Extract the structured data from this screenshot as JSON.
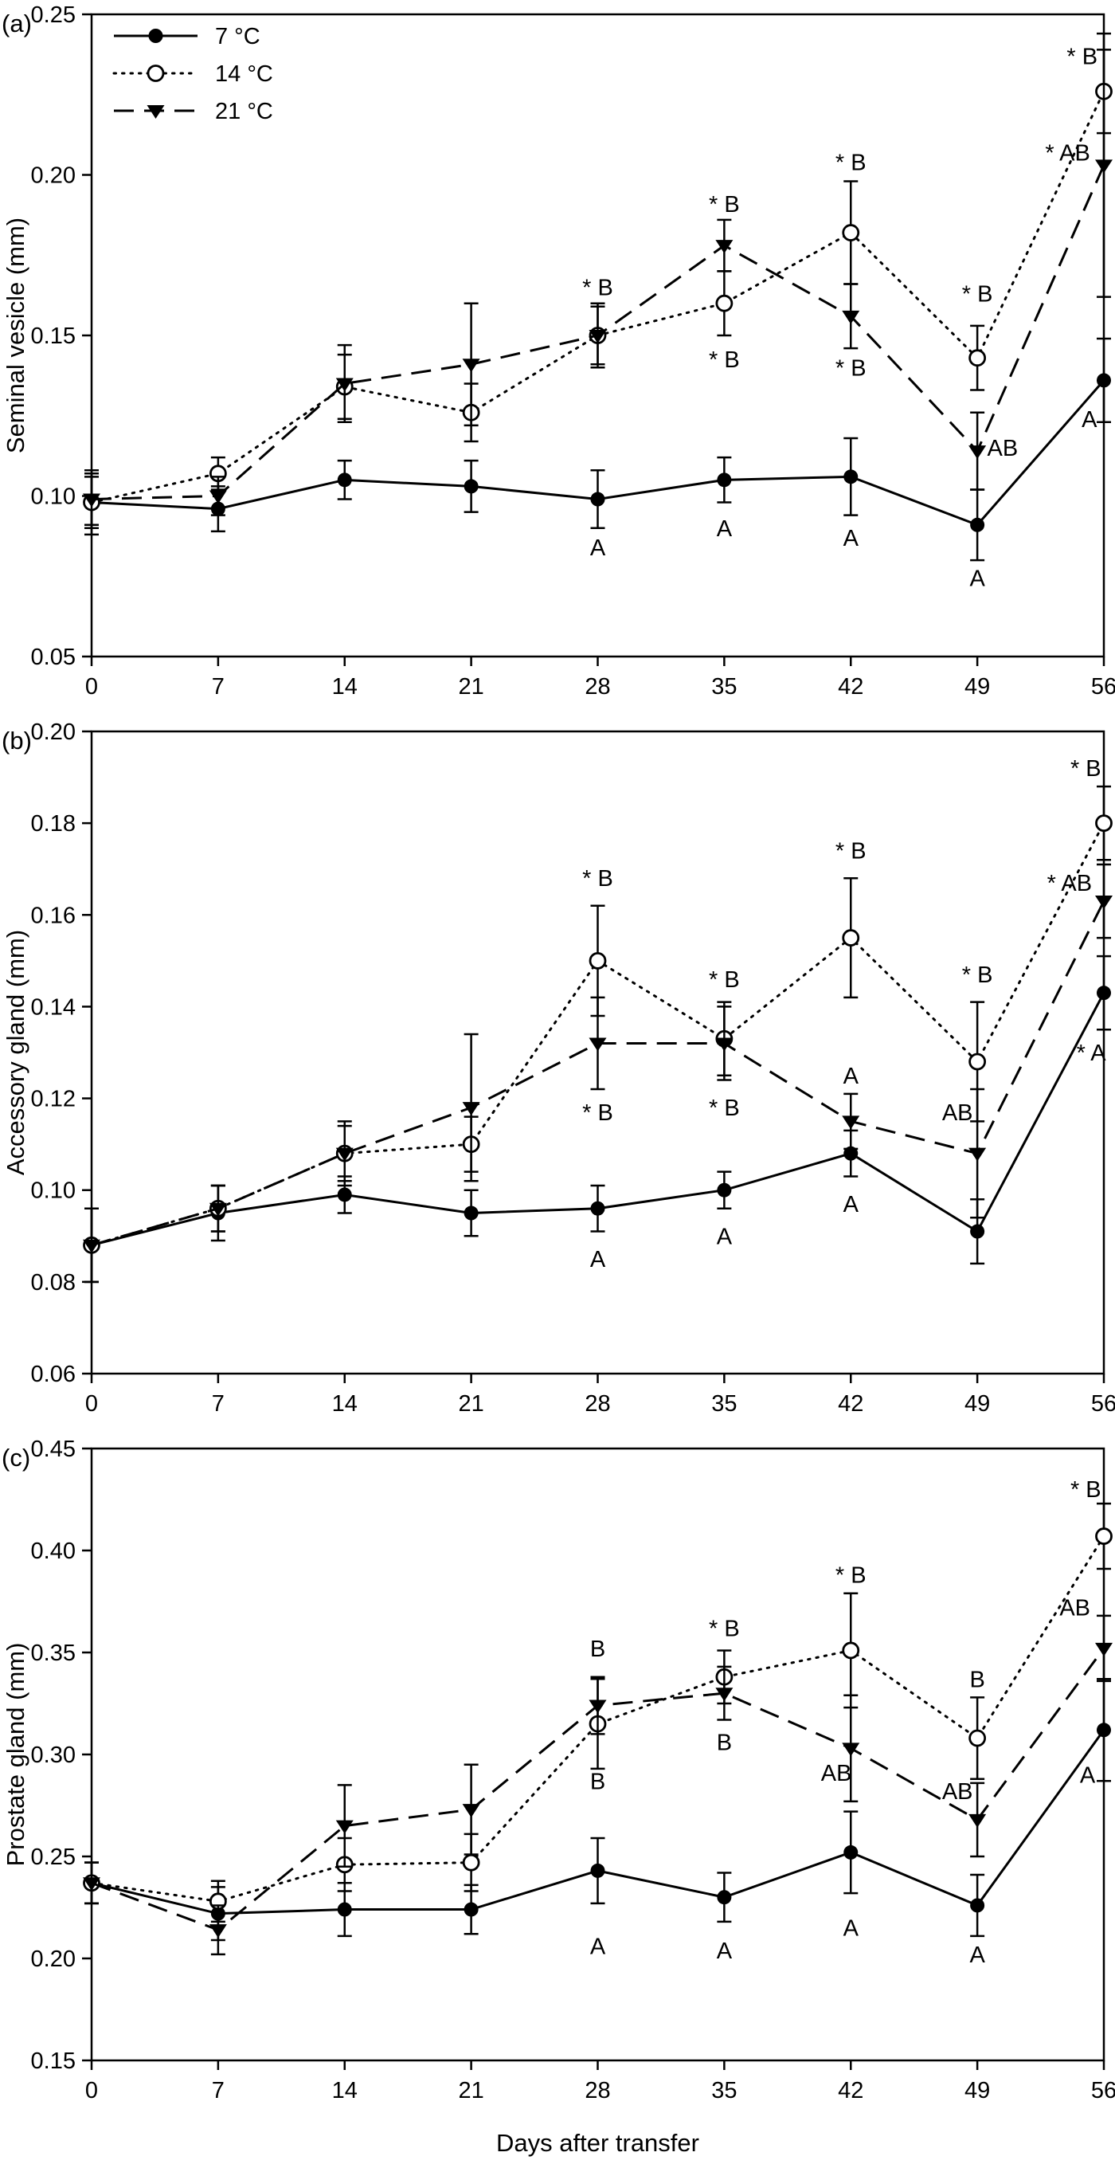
{
  "figure": {
    "xlabel": "Days after transfer",
    "x_ticks": [
      0,
      7,
      14,
      21,
      28,
      35,
      42,
      49,
      56
    ],
    "colors": {
      "foreground": "#000000",
      "background": "#ffffff"
    },
    "legend": {
      "position": "top-left-panel-a",
      "entries": [
        {
          "label": "7 °C",
          "marker": "filled-circle",
          "line": "solid"
        },
        {
          "label": "14 °C",
          "marker": "open-circle",
          "line": "dotted"
        },
        {
          "label": "21 °C",
          "marker": "filled-triangle-down",
          "line": "dashed"
        }
      ]
    }
  },
  "chart_data": [
    {
      "type": "line",
      "panel_label": "(a)",
      "ylabel": "Seminal vesicle (mm)",
      "x": [
        0,
        7,
        14,
        21,
        28,
        35,
        42,
        49,
        56
      ],
      "ylim": [
        0.05,
        0.25
      ],
      "yticks": [
        0.05,
        0.1,
        0.15,
        0.2,
        0.25
      ],
      "grid": false,
      "show_legend": true,
      "series": [
        {
          "name": "7 °C",
          "marker": "filled-circle",
          "line": "solid",
          "values": [
            0.098,
            0.096,
            0.105,
            0.103,
            0.099,
            0.105,
            0.106,
            0.091,
            0.136
          ],
          "errors": [
            0.01,
            0.007,
            0.006,
            0.008,
            0.009,
            0.007,
            0.012,
            0.011,
            0.013
          ]
        },
        {
          "name": "14 °C",
          "marker": "open-circle",
          "line": "dotted",
          "values": [
            0.098,
            0.107,
            0.134,
            0.126,
            0.15,
            0.16,
            0.182,
            0.143,
            0.226
          ],
          "errors": [
            0.008,
            0.005,
            0.01,
            0.009,
            0.01,
            0.01,
            0.016,
            0.01,
            0.013
          ]
        },
        {
          "name": "21 °C",
          "marker": "filled-triangle-down",
          "line": "dashed",
          "values": [
            0.099,
            0.1,
            0.135,
            0.141,
            0.15,
            0.178,
            0.156,
            0.114,
            0.203
          ],
          "errors": [
            0.008,
            0.006,
            0.012,
            0.019,
            0.009,
            0.008,
            0.01,
            0.012,
            0.041
          ]
        }
      ],
      "annotations": [
        {
          "x": 28,
          "y": 0.165,
          "text": "* B"
        },
        {
          "x": 35,
          "y": 0.191,
          "text": "* B"
        },
        {
          "x": 42,
          "y": 0.204,
          "text": "* B"
        },
        {
          "x": 49,
          "y": 0.163,
          "text": "* B"
        },
        {
          "x": 54.8,
          "y": 0.237,
          "text": "* B"
        },
        {
          "x": 54.0,
          "y": 0.207,
          "text": "* AB"
        },
        {
          "x": 35,
          "y": 0.1425,
          "text": "* B"
        },
        {
          "x": 42,
          "y": 0.14,
          "text": "* B"
        },
        {
          "x": 50.4,
          "y": 0.115,
          "text": "AB"
        },
        {
          "x": 28,
          "y": 0.084,
          "text": "A"
        },
        {
          "x": 35,
          "y": 0.09,
          "text": "A"
        },
        {
          "x": 42,
          "y": 0.087,
          "text": "A"
        },
        {
          "x": 49,
          "y": 0.0745,
          "text": "A"
        },
        {
          "x": 55.2,
          "y": 0.124,
          "text": "A"
        }
      ]
    },
    {
      "type": "line",
      "panel_label": "(b)",
      "ylabel": "Accessory gland (mm)",
      "x": [
        0,
        7,
        14,
        21,
        28,
        35,
        42,
        49,
        56
      ],
      "ylim": [
        0.06,
        0.2
      ],
      "yticks": [
        0.06,
        0.08,
        0.1,
        0.12,
        0.14,
        0.16,
        0.18,
        0.2
      ],
      "grid": false,
      "show_legend": false,
      "series": [
        {
          "name": "7 °C",
          "marker": "filled-circle",
          "line": "solid",
          "values": [
            0.088,
            0.095,
            0.099,
            0.095,
            0.096,
            0.1,
            0.108,
            0.091,
            0.143
          ],
          "errors": [
            0.008,
            0.006,
            0.004,
            0.005,
            0.005,
            0.004,
            0.005,
            0.007,
            0.008
          ]
        },
        {
          "name": "14 °C",
          "marker": "open-circle",
          "line": "dotted",
          "values": [
            0.088,
            0.096,
            0.108,
            0.11,
            0.15,
            0.133,
            0.155,
            0.128,
            0.18
          ],
          "errors": [
            0.008,
            0.005,
            0.006,
            0.006,
            0.012,
            0.008,
            0.013,
            0.013,
            0.008
          ]
        },
        {
          "name": "21 °C",
          "marker": "filled-triangle-down",
          "line": "dashed",
          "values": [
            0.088,
            0.096,
            0.108,
            0.118,
            0.132,
            0.132,
            0.115,
            0.108,
            0.163
          ],
          "errors": [
            0.008,
            0.005,
            0.007,
            0.016,
            0.01,
            0.008,
            0.006,
            0.014,
            0.008
          ]
        }
      ],
      "annotations": [
        {
          "x": 28,
          "y": 0.168,
          "text": "* B"
        },
        {
          "x": 35,
          "y": 0.146,
          "text": "* B"
        },
        {
          "x": 42,
          "y": 0.174,
          "text": "* B"
        },
        {
          "x": 49,
          "y": 0.147,
          "text": "* B"
        },
        {
          "x": 55.0,
          "y": 0.192,
          "text": "* B"
        },
        {
          "x": 54.1,
          "y": 0.167,
          "text": "* AB"
        },
        {
          "x": 55.3,
          "y": 0.13,
          "text": "* A"
        },
        {
          "x": 28,
          "y": 0.117,
          "text": "* B"
        },
        {
          "x": 35,
          "y": 0.118,
          "text": "* B"
        },
        {
          "x": 42,
          "y": 0.125,
          "text": "A"
        },
        {
          "x": 47.9,
          "y": 0.117,
          "text": "AB"
        },
        {
          "x": 28,
          "y": 0.085,
          "text": "A"
        },
        {
          "x": 35,
          "y": 0.09,
          "text": "A"
        },
        {
          "x": 42,
          "y": 0.097,
          "text": "A"
        }
      ]
    },
    {
      "type": "line",
      "panel_label": "(c)",
      "ylabel": "Prostate gland (mm)",
      "x": [
        0,
        7,
        14,
        21,
        28,
        35,
        42,
        49,
        56
      ],
      "ylim": [
        0.15,
        0.45
      ],
      "yticks": [
        0.15,
        0.2,
        0.25,
        0.3,
        0.35,
        0.4,
        0.45
      ],
      "grid": false,
      "show_legend": false,
      "series": [
        {
          "name": "7 °C",
          "marker": "filled-circle",
          "line": "solid",
          "values": [
            0.237,
            0.222,
            0.224,
            0.224,
            0.243,
            0.23,
            0.252,
            0.226,
            0.312
          ],
          "errors": [
            0.01,
            0.013,
            0.013,
            0.012,
            0.016,
            0.012,
            0.02,
            0.015,
            0.025
          ]
        },
        {
          "name": "14 °C",
          "marker": "open-circle",
          "line": "dotted",
          "values": [
            0.237,
            0.228,
            0.246,
            0.247,
            0.315,
            0.338,
            0.351,
            0.308,
            0.407
          ],
          "errors": [
            0.01,
            0.01,
            0.013,
            0.014,
            0.022,
            0.013,
            0.028,
            0.02,
            0.016
          ]
        },
        {
          "name": "21 °C",
          "marker": "filled-triangle-down",
          "line": "dashed",
          "values": [
            0.237,
            0.214,
            0.265,
            0.273,
            0.324,
            0.33,
            0.303,
            0.268,
            0.352
          ],
          "errors": [
            0.01,
            0.012,
            0.02,
            0.022,
            0.014,
            0.013,
            0.026,
            0.018,
            0.016
          ]
        }
      ],
      "annotations": [
        {
          "x": 28,
          "y": 0.352,
          "text": "B"
        },
        {
          "x": 35,
          "y": 0.362,
          "text": "* B"
        },
        {
          "x": 42,
          "y": 0.388,
          "text": "* B"
        },
        {
          "x": 49,
          "y": 0.337,
          "text": "B"
        },
        {
          "x": 55.0,
          "y": 0.43,
          "text": "* B"
        },
        {
          "x": 54.4,
          "y": 0.372,
          "text": "AB"
        },
        {
          "x": 28,
          "y": 0.287,
          "text": "B"
        },
        {
          "x": 35,
          "y": 0.306,
          "text": "B"
        },
        {
          "x": 41.2,
          "y": 0.291,
          "text": "AB"
        },
        {
          "x": 47.9,
          "y": 0.282,
          "text": "AB"
        },
        {
          "x": 28,
          "y": 0.206,
          "text": "A"
        },
        {
          "x": 35,
          "y": 0.204,
          "text": "A"
        },
        {
          "x": 42,
          "y": 0.215,
          "text": "A"
        },
        {
          "x": 49,
          "y": 0.202,
          "text": "A"
        },
        {
          "x": 55.1,
          "y": 0.29,
          "text": "A"
        }
      ]
    }
  ]
}
